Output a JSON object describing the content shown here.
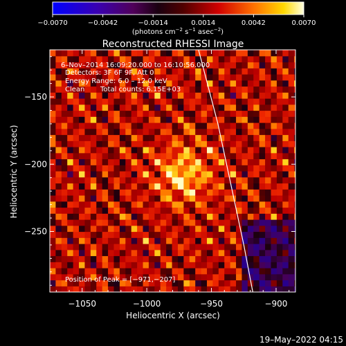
{
  "chart_data": {
    "type": "heatmap",
    "title": "Reconstructed RHESSI Image",
    "xlabel": "Heliocentric X (arcsec)",
    "ylabel": "Heliocentric Y (arcsec)",
    "xlim": [
      -1075,
      -885
    ],
    "ylim": [
      -295,
      -115
    ],
    "x_ticks": [
      -1050,
      -1000,
      -950,
      -900
    ],
    "x_tick_labels": [
      "−1050",
      "−1000",
      "−950",
      "−900"
    ],
    "y_ticks": [
      -250,
      -200,
      -150
    ],
    "y_tick_labels": [
      "−250",
      "−200",
      "−150"
    ],
    "colorbar": {
      "range": [
        -0.007,
        0.007
      ],
      "tick_labels": [
        "−0.0070",
        "−0.0042",
        "−0.0014",
        "0.0014",
        "0.0042",
        "0.0070"
      ],
      "units_label": "(photons cm",
      "units_exp1": "−2",
      "units_mid": " s",
      "units_exp2": "−1",
      "units_tail": " asec",
      "units_exp3": "−2",
      "units_close": ")"
    },
    "annotations": [
      "6–Nov–2014 16:09:20.000 to 16:10:56.000",
      "Detectors: 3F 6F 9F, Att 0",
      "Energy Range: 6.0 – 12.0 keV",
      "Clean",
      "Total counts: 6.15E+03"
    ],
    "peak": {
      "x": -971,
      "y": -207
    },
    "peak_label": "Position of Peak = [−971,−207]",
    "limb_curve": {
      "x": [
        -960,
        -945,
        -935,
        -925,
        -918
      ],
      "y": [
        -115,
        -170,
        -215,
        -260,
        -295
      ]
    }
  },
  "footer": {
    "date": "19–May–2022 04:15"
  }
}
